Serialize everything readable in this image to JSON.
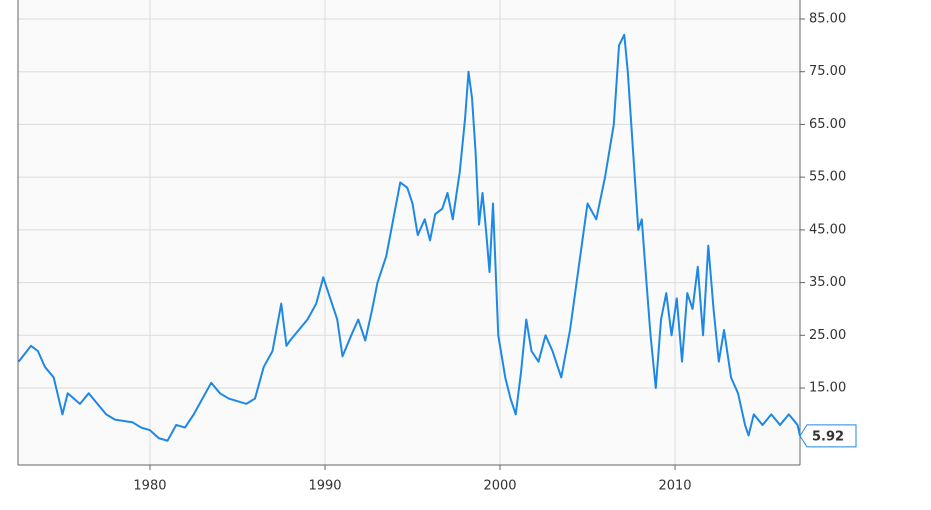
{
  "chart_data": {
    "type": "line",
    "color": "#1e88e5",
    "grid": true,
    "xlim": [
      1972.46,
      2017.14
    ],
    "xticks": [
      1980,
      1990,
      2000,
      2010
    ],
    "ylim": [
      0.4,
      88.6
    ],
    "yticks": [
      {
        "value": 15,
        "label": "15.00"
      },
      {
        "value": 25,
        "label": "25.00"
      },
      {
        "value": 35,
        "label": "35.00"
      },
      {
        "value": 45,
        "label": "45.00"
      },
      {
        "value": 55,
        "label": "55.00"
      },
      {
        "value": 65,
        "label": "65.00"
      },
      {
        "value": 75,
        "label": "75.00"
      },
      {
        "value": 85,
        "label": "85.00"
      }
    ],
    "x": [
      1972.5,
      1973.2,
      1973.6,
      1974,
      1974.5,
      1975,
      1975.3,
      1976,
      1976.5,
      1977,
      1977.5,
      1978,
      1979,
      1979.5,
      1980,
      1980.5,
      1981,
      1981.5,
      1982,
      1982.5,
      1983,
      1983.5,
      1984,
      1984.5,
      1985,
      1985.5,
      1986,
      1986.5,
      1987,
      1987.5,
      1987.8,
      1988,
      1988.5,
      1989,
      1989.5,
      1989.9,
      1990.3,
      1990.7,
      1991,
      1991.5,
      1991.9,
      1992.3,
      1992.7,
      1993,
      1993.5,
      1993.9,
      1994.3,
      1994.7,
      1995,
      1995.3,
      1995.7,
      1996,
      1996.3,
      1996.7,
      1997,
      1997.3,
      1997.7,
      1998,
      1998.2,
      1998.4,
      1998.6,
      1998.8,
      1999,
      1999.2,
      1999.4,
      1999.6,
      1999.9,
      2000.3,
      2000.6,
      2000.9,
      2001.2,
      2001.5,
      2001.8,
      2002.2,
      2002.6,
      2003,
      2003.5,
      2004,
      2004.5,
      2005,
      2005.5,
      2006,
      2006.5,
      2006.8,
      2007.1,
      2007.3,
      2007.6,
      2007.9,
      2008.1,
      2008.3,
      2008.6,
      2008.9,
      2009.2,
      2009.5,
      2009.8,
      2010.1,
      2010.4,
      2010.7,
      2011,
      2011.3,
      2011.6,
      2011.9,
      2012.2,
      2012.5,
      2012.8,
      2013.2,
      2013.6,
      2014,
      2014.2,
      2014.5,
      2015,
      2015.5,
      2016,
      2016.5,
      2017,
      2017.14
    ],
    "values": [
      20,
      23,
      22,
      19,
      17,
      10,
      14,
      12,
      14,
      12,
      10,
      9,
      8.5,
      7.5,
      7,
      5.5,
      5,
      8,
      7.5,
      10,
      13,
      16,
      14,
      13,
      12.5,
      12,
      13,
      19,
      22,
      31,
      23,
      24,
      26,
      28,
      31,
      36,
      32,
      28,
      21,
      25,
      28,
      24,
      30,
      35,
      40,
      47,
      54,
      53,
      50,
      44,
      47,
      43,
      48,
      49,
      52,
      47,
      56,
      66,
      75,
      70,
      60,
      46,
      52,
      45,
      37,
      50,
      25,
      17,
      13,
      10,
      18,
      28,
      22,
      20,
      25,
      22,
      17,
      26,
      38,
      50,
      47,
      55,
      65,
      80,
      82,
      75,
      60,
      45,
      47,
      38,
      25,
      15,
      28,
      33,
      25,
      32,
      20,
      33,
      30,
      38,
      25,
      42,
      30,
      20,
      26,
      17,
      14,
      8,
      6,
      10,
      8,
      10,
      8,
      10,
      8,
      5.92
    ]
  }
}
